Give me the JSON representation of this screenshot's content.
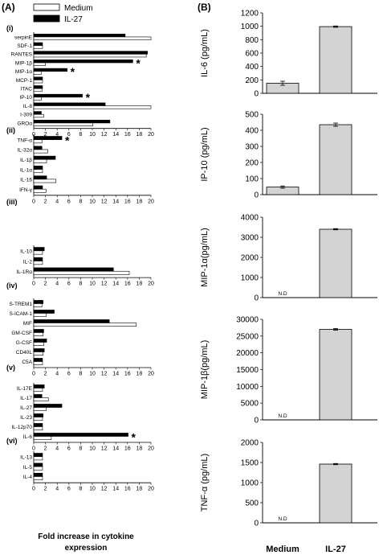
{
  "panel_labels": [
    "(A)",
    "(B)"
  ],
  "legend": [
    {
      "label": "Medium",
      "fill": "#ffffff"
    },
    {
      "label": "IL-27",
      "fill": "#000000"
    }
  ],
  "colors": {
    "il27_bar": "#000000",
    "medium_bar": "#ffffff",
    "right_bar": "#d3d3d3"
  },
  "left_footer": [
    "Fold increase in cytokine",
    "expression"
  ],
  "chart_data": [
    {
      "type": "bar",
      "orientation": "horizontal",
      "xlim": [
        0,
        20
      ],
      "xticks": [
        0,
        2,
        4,
        6,
        8,
        10,
        12,
        14,
        16,
        18,
        20
      ],
      "xlabel": "Fold increase in cytokine expression",
      "series_names": [
        "Medium",
        "IL-27"
      ],
      "groups": [
        {
          "label": "(i)",
          "rows": [
            {
              "name": "serpinE",
              "medium": 20,
              "il27": 15.6,
              "sig": false
            },
            {
              "name": "SDF-1",
              "medium": 1.5,
              "il27": 1.5,
              "sig": false
            },
            {
              "name": "RANTES",
              "medium": 19.2,
              "il27": 19.4,
              "sig": false
            },
            {
              "name": "MIP-1β",
              "medium": 2,
              "il27": 16.9,
              "sig": true
            },
            {
              "name": "MIP-1α",
              "medium": 1.3,
              "il27": 5.7,
              "sig": true
            },
            {
              "name": "MCP-1",
              "medium": 1.5,
              "il27": 1.5,
              "sig": false
            },
            {
              "name": "ITAC",
              "medium": 1.4,
              "il27": 1.5,
              "sig": false
            },
            {
              "name": "IP-10",
              "medium": 1.3,
              "il27": 8.3,
              "sig": true
            },
            {
              "name": "IL-8",
              "medium": 20,
              "il27": 12.2,
              "sig": false
            },
            {
              "name": "I-309",
              "medium": 1.7,
              "il27": 1.3,
              "sig": false
            },
            {
              "name": "GROα",
              "medium": 10.1,
              "il27": 13,
              "sig": false
            }
          ]
        },
        {
          "label": "(ii)",
          "rows": [
            {
              "name": "TNF-α",
              "medium": 1.4,
              "il27": 4.8,
              "sig": true
            },
            {
              "name": "IL-32α",
              "medium": 2.4,
              "il27": 1.4,
              "sig": false
            },
            {
              "name": "IL-1β",
              "medium": 2.2,
              "il27": 3.7,
              "sig": false
            },
            {
              "name": "IL-1α",
              "medium": 1.5,
              "il27": 1.5,
              "sig": false
            },
            {
              "name": "IL-16",
              "medium": 3.8,
              "il27": 2.2,
              "sig": false
            },
            {
              "name": "IFN-γ",
              "medium": 2.1,
              "il27": 1.5,
              "sig": false
            }
          ]
        },
        {
          "label": "(iii)",
          "rows": [
            {
              "name": "IL-10",
              "medium": 1.5,
              "il27": 1.8,
              "sig": false
            },
            {
              "name": "IL-2",
              "medium": 1.5,
              "il27": 1.5,
              "sig": false
            },
            {
              "name": "IL-1Rα",
              "medium": 16.3,
              "il27": 13.6,
              "sig": false
            }
          ]
        },
        {
          "label": "(iv)",
          "rows": [
            {
              "name": "S-TREM1",
              "medium": 1.4,
              "il27": 1.6,
              "sig": false
            },
            {
              "name": "S-ICAM-1",
              "medium": 2.1,
              "il27": 3.5,
              "sig": false
            },
            {
              "name": "MIF",
              "medium": 17.5,
              "il27": 12.9,
              "sig": false
            },
            {
              "name": "GM-CSF",
              "medium": 1.6,
              "il27": 1.7,
              "sig": false
            },
            {
              "name": "G-CSF",
              "medium": 1.7,
              "il27": 2.2,
              "sig": false
            },
            {
              "name": "CD40L",
              "medium": 1.6,
              "il27": 1.8,
              "sig": false
            },
            {
              "name": "C5A",
              "medium": 1.5,
              "il27": 1.5,
              "sig": false
            }
          ]
        },
        {
          "label": "(v)",
          "rows": [
            {
              "name": "IL-17E",
              "medium": 1.5,
              "il27": 1.8,
              "sig": false
            },
            {
              "name": "IL-17",
              "medium": 2.5,
              "il27": 1.4,
              "sig": false
            },
            {
              "name": "IL-27",
              "medium": 2.1,
              "il27": 4.8,
              "sig": false
            },
            {
              "name": "IL-23",
              "medium": 1.5,
              "il27": 1.6,
              "sig": false
            },
            {
              "name": "IL-12p70",
              "medium": 1.5,
              "il27": 1.5,
              "sig": false
            },
            {
              "name": "IL-6",
              "medium": 3,
              "il27": 16.1,
              "sig": true
            }
          ]
        },
        {
          "label": "(vi)",
          "rows": [
            {
              "name": "IL-13",
              "medium": 1.5,
              "il27": 1.5,
              "sig": false
            },
            {
              "name": "IL-5",
              "medium": 1.5,
              "il27": 1.5,
              "sig": false
            },
            {
              "name": "IL-4",
              "medium": 1.5,
              "il27": 1.5,
              "sig": false
            }
          ]
        }
      ]
    },
    {
      "type": "bar",
      "categories": [
        "Medium",
        "IL-27"
      ],
      "panels": [
        {
          "ylabel": "IL-6 (pg/mL)",
          "ylim": [
            0,
            1200
          ],
          "yticks": [
            0,
            200,
            400,
            600,
            800,
            1000,
            1200
          ],
          "values": [
            150,
            995
          ],
          "errors": [
            30,
            10
          ],
          "nd": [
            false,
            false
          ]
        },
        {
          "ylabel": "IP-10 (pg/mL)",
          "ylim": [
            0,
            500
          ],
          "yticks": [
            0,
            100,
            200,
            300,
            400,
            500
          ],
          "values": [
            47,
            435
          ],
          "errors": [
            7,
            10
          ],
          "nd": [
            false,
            false
          ]
        },
        {
          "ylabel": "MIP-1α(pg/mL)",
          "ylim": [
            0,
            4000
          ],
          "yticks": [
            0,
            1000,
            2000,
            3000,
            4000
          ],
          "values": [
            0,
            3400
          ],
          "errors": [
            0,
            30
          ],
          "nd": [
            true,
            false
          ]
        },
        {
          "ylabel": "MIP-1β(pg/mL)",
          "ylim": [
            0,
            30000
          ],
          "yticks": [
            0,
            5000,
            10000,
            15000,
            20000,
            25000,
            30000
          ],
          "values": [
            0,
            27000
          ],
          "errors": [
            0,
            250
          ],
          "nd": [
            true,
            false
          ]
        },
        {
          "ylabel": "TNF-α (pg/mL)",
          "ylim": [
            0,
            2000
          ],
          "yticks": [
            0,
            500,
            1000,
            1500,
            2000
          ],
          "values": [
            0,
            1460
          ],
          "errors": [
            0,
            15
          ],
          "nd": [
            true,
            false
          ]
        }
      ],
      "nd_label": "N.D"
    }
  ]
}
